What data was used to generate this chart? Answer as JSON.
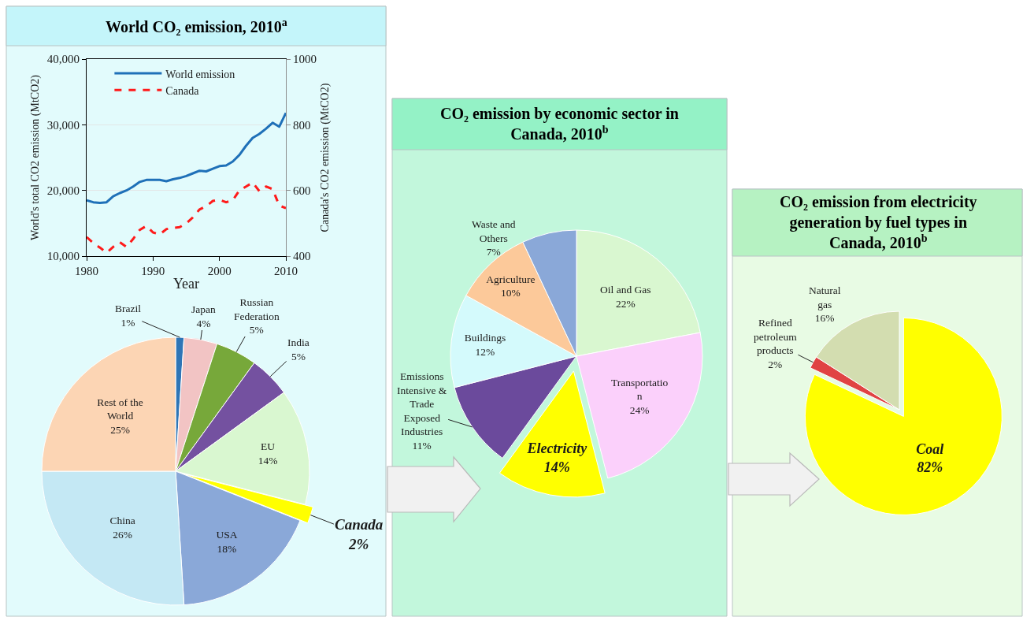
{
  "chart_data": [
    {
      "type": "line",
      "title": "World CO₂ emission, 2010$^{a}$",
      "xlabel": "Year",
      "ylabel": "World's total CO2 emission (MtCO2)",
      "y2label": "Canada's CO2 emission (MtCO2)",
      "x": [
        1980,
        1981,
        1982,
        1983,
        1984,
        1985,
        1986,
        1987,
        1988,
        1989,
        1990,
        1991,
        1992,
        1993,
        1994,
        1995,
        1996,
        1997,
        1998,
        1999,
        2000,
        2001,
        2002,
        2003,
        2004,
        2005,
        2006,
        2007,
        2008,
        2009,
        2010
      ],
      "series": [
        {
          "name": "World emission",
          "color": "#1f70b8",
          "line_style": "solid",
          "values": [
            18500,
            18200,
            18100,
            18200,
            19100,
            19600,
            20000,
            20600,
            21300,
            21600,
            21600,
            21600,
            21400,
            21700,
            21900,
            22200,
            22600,
            23000,
            22900,
            23300,
            23700,
            23800,
            24400,
            25400,
            26800,
            28000,
            28600,
            29400,
            30300,
            29700,
            31800
          ]
        },
        {
          "name": "Canada",
          "color": "#ff1a1a",
          "line_style": "dashed",
          "axis": "y2",
          "values": [
            458,
            440,
            426,
            410,
            428,
            442,
            428,
            452,
            480,
            492,
            472,
            466,
            482,
            486,
            488,
            500,
            518,
            542,
            552,
            568,
            572,
            564,
            570,
            600,
            612,
            624,
            598,
            612,
            604,
            554,
            546
          ]
        }
      ],
      "xlim": [
        1980,
        2010
      ],
      "xticks": [
        1980,
        1990,
        2000,
        2010
      ],
      "ylim": [
        10000,
        40000
      ],
      "yticks": [
        {
          "value": 10000,
          "label": "10,000"
        },
        {
          "value": 20000,
          "label": "20,000"
        },
        {
          "value": 30000,
          "label": "30,000"
        },
        {
          "value": 40000,
          "label": "40,000"
        }
      ],
      "y2lim": [
        400,
        1000
      ],
      "y2ticks": [
        400,
        600,
        800,
        1000
      ],
      "grid": "y",
      "legend": "top left"
    },
    {
      "type": "pie",
      "categories": [
        "Brazil",
        "Japan",
        "Russian Federation",
        "India",
        "EU",
        "Canada",
        "USA",
        "China",
        "Rest of the World"
      ],
      "values": [
        1,
        4,
        5,
        5,
        14,
        2,
        18,
        26,
        25
      ],
      "value_labels": [
        "1%",
        "4%",
        "5%",
        "5%",
        "14%",
        "2%",
        "18%",
        "26%",
        "25%"
      ],
      "colors": [
        "#2e75b6",
        "#f2c4c4",
        "#77a83a",
        "#7451a0",
        "#d9f7d0",
        "#ffff00",
        "#8aa8d8",
        "#c4e8f4",
        "#fcd5b4"
      ]
    },
    {
      "type": "pie",
      "title": "CO₂ emission by economic sector in Canada, 2010$^{b}$",
      "categories": [
        "Oil and Gas",
        "Transportation",
        "Electricity",
        "Emissions Intensive & Trade Exposed Industries",
        "Buildings",
        "Agriculture",
        "Waste and Others"
      ],
      "values": [
        22,
        24,
        14,
        11,
        12,
        10,
        7
      ],
      "value_labels": [
        "22%",
        "24%",
        "14%",
        "11%",
        "12%",
        "10%",
        "7%"
      ],
      "colors": [
        "#d9f7d0",
        "#fbd0fb",
        "#ffff00",
        "#6b4a9c",
        "#d4fafc",
        "#fcc99a",
        "#8aa8d8"
      ]
    },
    {
      "type": "pie",
      "title": "CO₂ emission from electricity generation by fuel types in Canada, 2010$^{b}$",
      "categories": [
        "Coal",
        "Refined petroleum products",
        "Natural gas"
      ],
      "values": [
        82,
        2,
        16
      ],
      "value_labels": [
        "82%",
        "2%",
        "16%"
      ],
      "colors": [
        "#ffff00",
        "#e04343",
        "#d3ddb0"
      ]
    }
  ]
}
